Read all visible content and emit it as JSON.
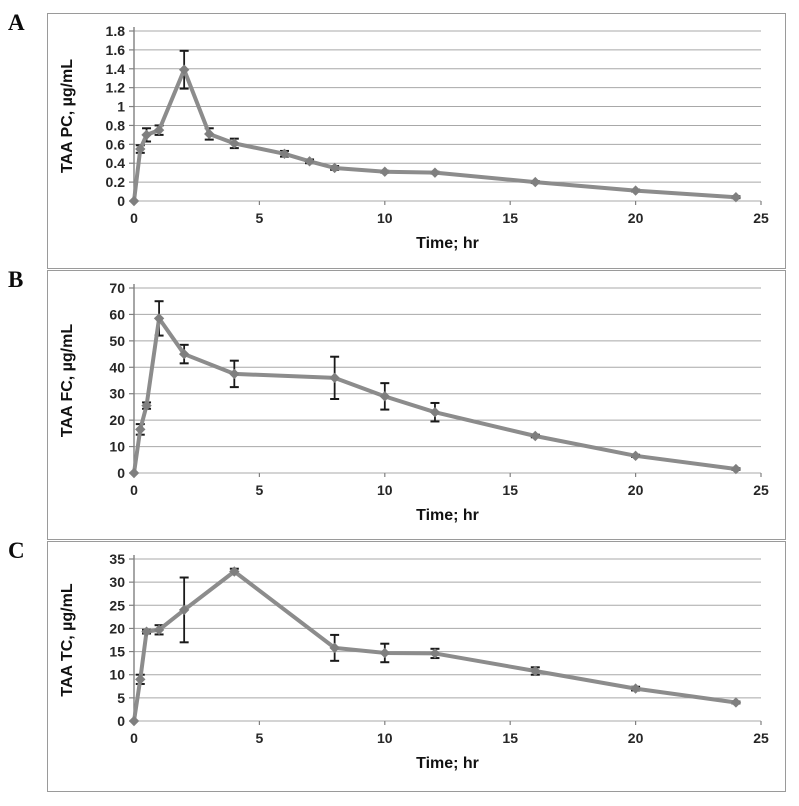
{
  "figure": {
    "background": "#ffffff",
    "frame_color": "#9a9a9a"
  },
  "style": {
    "colors": {
      "line": "#8c8c8c",
      "marker": "#7f7f7f",
      "error": "#1a1a1a",
      "grid": "#a8a8a8",
      "axis": "#808080",
      "tick_text": "#262626",
      "label_text": "#111111"
    }
  },
  "chart_data": [
    {
      "panel_label": "A",
      "type": "line",
      "title": "",
      "xlabel": "Time; hr",
      "ylabel": "TAA PC, µg/mL",
      "x": [
        0,
        0.25,
        0.5,
        1,
        2,
        3,
        4,
        6,
        7,
        8,
        10,
        12,
        16,
        20,
        24
      ],
      "y": [
        0,
        0.55,
        0.7,
        0.75,
        1.39,
        0.71,
        0.61,
        0.5,
        0.42,
        0.35,
        0.31,
        0.3,
        0.2,
        0.11,
        0.04
      ],
      "yerr": [
        0,
        0.04,
        0.07,
        0.05,
        0.2,
        0.06,
        0.05,
        0.03,
        0.02,
        0.02,
        0.01,
        0.01,
        0.01,
        0.01,
        0.01
      ],
      "xlim": [
        0,
        25
      ],
      "ylim": [
        0,
        1.8
      ],
      "xtick_labels": [
        "0",
        "5",
        "10",
        "15",
        "20",
        "25"
      ],
      "ytick_labels": [
        "0",
        "0.2",
        "0.4",
        "0.6",
        "0.8",
        "1",
        "1.2",
        "1.4",
        "1.6",
        "1.8"
      ],
      "grid": true,
      "legend": "none"
    },
    {
      "panel_label": "B",
      "type": "line",
      "title": "",
      "xlabel": "Time; hr",
      "ylabel": "TAA FC, µg/mL",
      "x": [
        0,
        0.25,
        0.5,
        1,
        2,
        4,
        8,
        10,
        12,
        16,
        20,
        24
      ],
      "y": [
        0,
        16.5,
        25.5,
        58.5,
        45,
        37.5,
        36,
        29,
        23,
        14,
        6.5,
        1.5
      ],
      "yerr": [
        0,
        2,
        1.2,
        6.5,
        3.5,
        5,
        8,
        5,
        3.5,
        0.5,
        0.4,
        0.3
      ],
      "xlim": [
        0,
        25
      ],
      "ylim": [
        0,
        70
      ],
      "xtick_labels": [
        "0",
        "5",
        "10",
        "15",
        "20",
        "25"
      ],
      "ytick_labels": [
        "0",
        "10",
        "20",
        "30",
        "40",
        "50",
        "60",
        "70"
      ],
      "grid": true,
      "legend": "none"
    },
    {
      "panel_label": "C",
      "type": "line",
      "title": "",
      "xlabel": "Time; hr",
      "ylabel": "TAA TC, µg/mL",
      "x": [
        0,
        0.25,
        0.5,
        1,
        2,
        4,
        8,
        10,
        12,
        16,
        20,
        24
      ],
      "y": [
        0,
        9,
        19.3,
        19.7,
        24,
        32.3,
        15.8,
        14.7,
        14.6,
        10.8,
        7,
        4
      ],
      "yerr": [
        0,
        1,
        0.4,
        1,
        7,
        0.6,
        2.8,
        2,
        1,
        0.8,
        0.4,
        0.2
      ],
      "xlim": [
        0,
        25
      ],
      "ylim": [
        0,
        35
      ],
      "xtick_labels": [
        "0",
        "5",
        "10",
        "15",
        "20",
        "25"
      ],
      "ytick_labels": [
        "0",
        "5",
        "10",
        "15",
        "20",
        "25",
        "30",
        "35"
      ],
      "grid": true,
      "legend": "none"
    }
  ]
}
